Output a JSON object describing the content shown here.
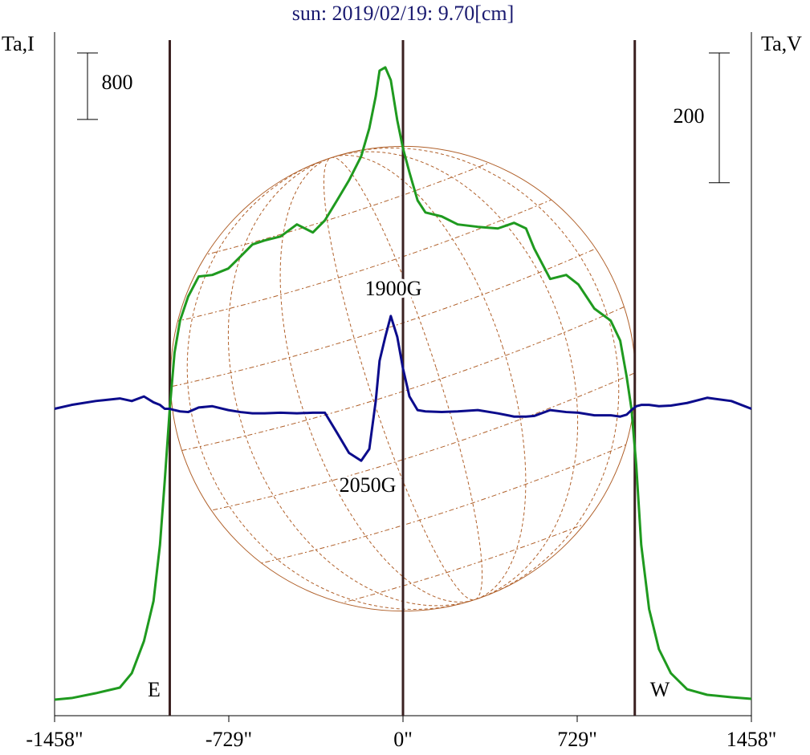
{
  "chart_data": {
    "type": "line",
    "title": "sun: 2019/02/19: 9.70[cm]",
    "y_label": "Ta,I",
    "y2_label": "Ta,V",
    "y_scale_bar": 800,
    "y2_scale_bar": 200,
    "xlim": [
      -1458,
      1458
    ],
    "xticks": [
      {
        "value": -1458,
        "label": "-1458\""
      },
      {
        "value": -729,
        "label": "-729\""
      },
      {
        "value": 0,
        "label": "0\""
      },
      {
        "value": 729,
        "label": "729\""
      },
      {
        "value": 1458,
        "label": "1458\""
      }
    ],
    "ylim": [
      -193,
      8127
    ],
    "y2lim": [
      -473,
      593
    ],
    "vlines": [
      -976,
      0,
      970
    ],
    "annotations": [
      "E",
      "W",
      "1900G",
      "2050G"
    ],
    "x": [
      -1458,
      -1387,
      -1286,
      -1185,
      -1135,
      -1084,
      -1044,
      -1017,
      -997,
      -976,
      -956,
      -933,
      -899,
      -855,
      -798,
      -731,
      -680,
      -630,
      -579,
      -512,
      -444,
      -377,
      -327,
      -276,
      -226,
      -175,
      -141,
      -114,
      -98,
      -74,
      -51,
      -24,
      0,
      27,
      61,
      94,
      162,
      229,
      313,
      397,
      465,
      515,
      549,
      616,
      683,
      734,
      801,
      869,
      909,
      936,
      956,
      976,
      997,
      1030,
      1071,
      1121,
      1189,
      1273,
      1374,
      1458
    ],
    "series": [
      {
        "name": "I",
        "color": "#1f9a1f",
        "values": [
          0,
          19,
          77,
          145,
          318,
          704,
          1186,
          1861,
          2632,
          3499,
          4174,
          4560,
          4849,
          5090,
          5109,
          5186,
          5331,
          5476,
          5524,
          5572,
          5717,
          5620,
          5765,
          6006,
          6247,
          6536,
          6873,
          7259,
          7567,
          7606,
          7452,
          6970,
          6632,
          6343,
          6006,
          5861,
          5813,
          5717,
          5688,
          5668,
          5736,
          5668,
          5427,
          5061,
          5109,
          4994,
          4704,
          4560,
          4319,
          3885,
          3499,
          2825,
          1861,
          1089,
          607,
          318,
          125,
          58,
          29,
          10
        ]
      },
      {
        "name": "V",
        "color": "#0c0c8c",
        "axis": "y2",
        "values": [
          0,
          6,
          12,
          16,
          12,
          19,
          10,
          6,
          0,
          0,
          -2,
          -4,
          -5,
          2,
          4,
          -2,
          -5,
          -7,
          -7,
          -6,
          -7,
          -6,
          -6,
          -37,
          -68,
          -80,
          -62,
          12,
          74,
          111,
          143,
          111,
          62,
          19,
          -2,
          -4,
          -5,
          -4,
          -2,
          -7,
          -12,
          -12,
          -11,
          -2,
          -5,
          -6,
          -10,
          -10,
          -12,
          -9,
          -2,
          4,
          6,
          6,
          4,
          5,
          9,
          17,
          12,
          0
        ]
      }
    ]
  }
}
